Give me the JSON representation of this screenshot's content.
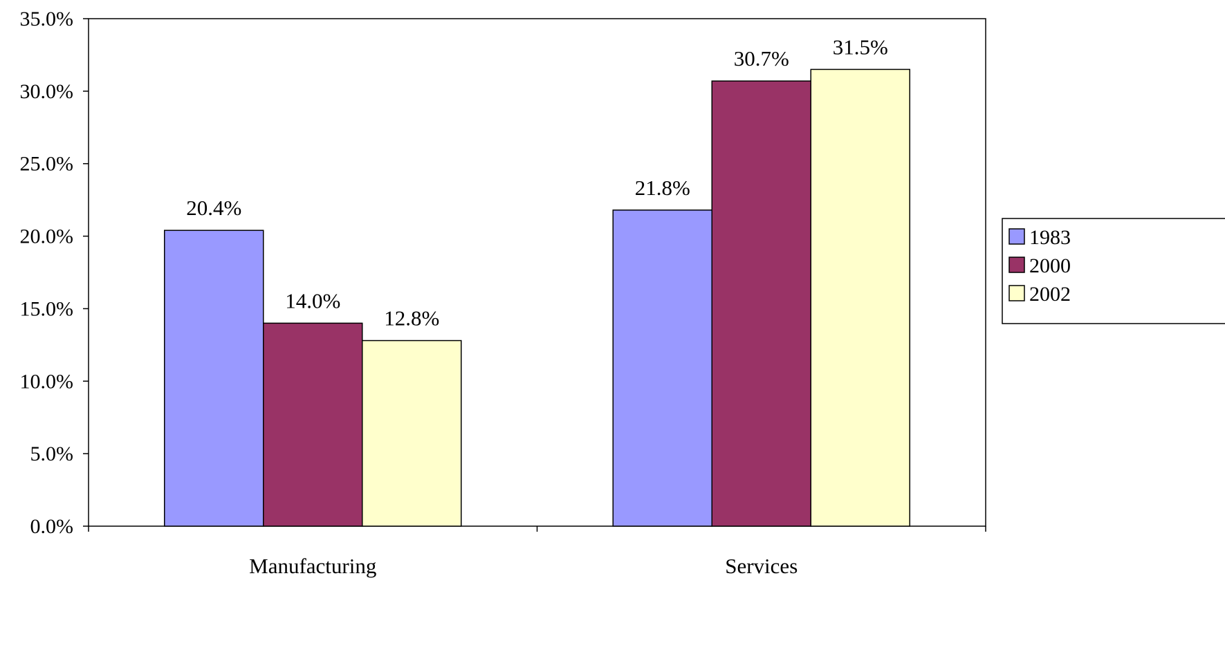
{
  "chart_data": {
    "type": "bar",
    "title": "",
    "xlabel": "",
    "ylabel": "",
    "categories": [
      "Manufacturing",
      "Services"
    ],
    "series": [
      {
        "name": "1983",
        "values": [
          20.4,
          21.8
        ],
        "color": "#9999FF",
        "labels": [
          "20.4%",
          "21.8%"
        ]
      },
      {
        "name": "2000",
        "values": [
          14.0,
          30.7
        ],
        "color": "#993366",
        "labels": [
          "14.0%",
          "30.7%"
        ]
      },
      {
        "name": "2002",
        "values": [
          12.8,
          31.5
        ],
        "color": "#FFFFCC",
        "labels": [
          "12.8%",
          "31.5%"
        ]
      }
    ],
    "ylim": [
      0,
      35
    ],
    "yticks": [
      0,
      5,
      10,
      15,
      20,
      25,
      30,
      35
    ],
    "ytick_labels": [
      "0.0%",
      "5.0%",
      "10.0%",
      "15.0%",
      "20.0%",
      "25.0%",
      "30.0%",
      "35.0%"
    ],
    "grid": false,
    "legend_position": "right"
  }
}
